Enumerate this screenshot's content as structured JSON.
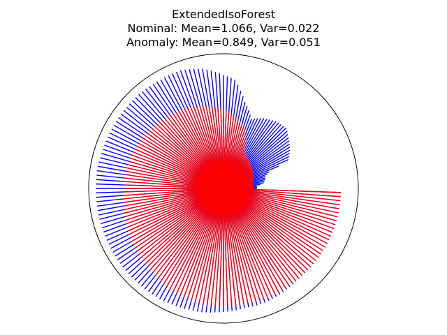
{
  "chart_data": {
    "type": "polar-bar",
    "title": "ExtendedIsoForest",
    "subtitle_lines": [
      "Nominal: Mean=1.066, Var=0.022",
      "Anomaly: Mean=0.849, Var=0.051"
    ],
    "grid": false,
    "rmax": 1.33,
    "series": [
      {
        "color": "#0000ff",
        "theta_start_deg": 0,
        "theta_end_deg": 360,
        "count": 180,
        "r_anchor_angles_deg": [
          0,
          2,
          4,
          8,
          12,
          16,
          20,
          24,
          28,
          36,
          44,
          52,
          60,
          68,
          76,
          84,
          90,
          100,
          110,
          120,
          130,
          140,
          150,
          160,
          170,
          180,
          190,
          200,
          210,
          220,
          230,
          240,
          250,
          260,
          270,
          280,
          290,
          300,
          310,
          320,
          330,
          340,
          350,
          360
        ],
        "r_anchor_values": [
          0.33,
          0.33,
          0.33,
          0.4,
          0.42,
          0.43,
          0.48,
          0.7,
          0.74,
          0.8,
          0.86,
          0.84,
          0.8,
          0.74,
          0.88,
          1.08,
          1.12,
          1.2,
          1.24,
          1.24,
          1.25,
          1.25,
          1.25,
          1.25,
          1.26,
          1.26,
          1.26,
          1.26,
          1.26,
          1.26,
          1.26,
          1.26,
          1.25,
          1.24,
          1.22,
          1.2,
          1.2,
          1.18,
          1.16,
          1.16,
          1.16,
          1.16,
          1.16,
          1.16
        ]
      },
      {
        "color": "#ff0000",
        "theta_start_deg": 0,
        "theta_end_deg": 360,
        "count": 180,
        "r_anchor_angles_deg": [
          0,
          10,
          20,
          30,
          40,
          50,
          60,
          70,
          80,
          90,
          100,
          110,
          120,
          130,
          140,
          150,
          160,
          170,
          180,
          190,
          200,
          210,
          220,
          230,
          240,
          250,
          260,
          270,
          280,
          290,
          300,
          310,
          320,
          330,
          340,
          350,
          360
        ],
        "r_anchor_values": [
          0.3,
          0.3,
          0.32,
          0.34,
          0.36,
          0.38,
          0.42,
          0.62,
          0.72,
          0.78,
          0.82,
          0.86,
          0.88,
          0.9,
          0.92,
          0.94,
          0.96,
          0.98,
          0.98,
          1.0,
          1.02,
          1.04,
          1.06,
          1.08,
          1.12,
          1.14,
          1.16,
          1.16,
          1.16,
          1.16,
          1.16,
          1.16,
          1.16,
          1.16,
          1.16,
          1.16,
          1.16
        ]
      }
    ]
  }
}
